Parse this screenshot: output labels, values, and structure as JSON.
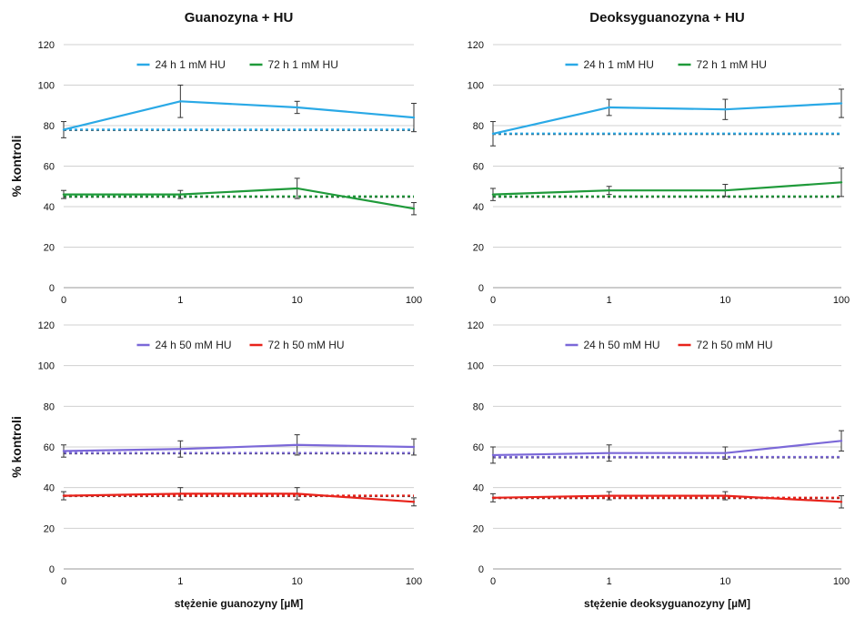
{
  "chart_data": [
    {
      "type": "line",
      "title": "Guanozyna + HU",
      "ylabel": "% kontroli",
      "xlabel": "",
      "x": [
        "0",
        "1",
        "10",
        "100"
      ],
      "ylim": [
        0,
        120
      ],
      "yticks": [
        0,
        20,
        40,
        60,
        80,
        100,
        120
      ],
      "grid": true,
      "legend": "top-center",
      "series": [
        {
          "name": "24 h 1 mM HU",
          "color": "#2aa9e6",
          "values": [
            78,
            92,
            89,
            84
          ],
          "errors": [
            4,
            8,
            3,
            7
          ],
          "baseline": 78
        },
        {
          "name": "72 h 1 mM HU",
          "color": "#1f9a3a",
          "values": [
            46,
            46,
            49,
            39
          ],
          "errors": [
            2,
            2,
            5,
            3
          ],
          "baseline": 45
        }
      ]
    },
    {
      "type": "line",
      "title": "Deoksyguanozyna + HU",
      "ylabel": "",
      "xlabel": "",
      "x": [
        "0",
        "1",
        "10",
        "100"
      ],
      "ylim": [
        0,
        120
      ],
      "yticks": [
        0,
        20,
        40,
        60,
        80,
        100,
        120
      ],
      "grid": true,
      "legend": "top-center",
      "series": [
        {
          "name": "24 h 1 mM HU",
          "color": "#2aa9e6",
          "values": [
            76,
            89,
            88,
            91
          ],
          "errors": [
            6,
            4,
            5,
            7
          ],
          "baseline": 76
        },
        {
          "name": "72 h 1 mM HU",
          "color": "#1f9a3a",
          "values": [
            46,
            48,
            48,
            52
          ],
          "errors": [
            3,
            2,
            3,
            7
          ],
          "baseline": 45
        }
      ]
    },
    {
      "type": "line",
      "title": "",
      "ylabel": "% kontroli",
      "xlabel": "stężenie guanozyny [µM]",
      "x": [
        "0",
        "1",
        "10",
        "100"
      ],
      "ylim": [
        0,
        120
      ],
      "yticks": [
        0,
        20,
        40,
        60,
        80,
        100,
        120
      ],
      "grid": true,
      "legend": "top-center",
      "series": [
        {
          "name": "24 h 50 mM HU",
          "color": "#7b68d8",
          "values": [
            58,
            59,
            61,
            60
          ],
          "errors": [
            3,
            4,
            5,
            4
          ],
          "baseline": 57
        },
        {
          "name": "72 h 50 mM HU",
          "color": "#e8231b",
          "values": [
            36,
            37,
            37,
            33
          ],
          "errors": [
            2,
            3,
            3,
            2
          ],
          "baseline": 36
        }
      ]
    },
    {
      "type": "line",
      "title": "",
      "ylabel": "",
      "xlabel": "stężenie deoksyguanozyny [µM]",
      "x": [
        "0",
        "1",
        "10",
        "100"
      ],
      "ylim": [
        0,
        120
      ],
      "yticks": [
        0,
        20,
        40,
        60,
        80,
        100,
        120
      ],
      "grid": true,
      "legend": "top-center",
      "series": [
        {
          "name": "24 h 50 mM HU",
          "color": "#7b68d8",
          "values": [
            56,
            57,
            57,
            63
          ],
          "errors": [
            4,
            4,
            3,
            5
          ],
          "baseline": 55
        },
        {
          "name": "72 h 50 mM HU",
          "color": "#e8231b",
          "values": [
            35,
            36,
            36,
            33
          ],
          "errors": [
            2,
            2,
            2,
            3
          ],
          "baseline": 35
        }
      ]
    }
  ]
}
